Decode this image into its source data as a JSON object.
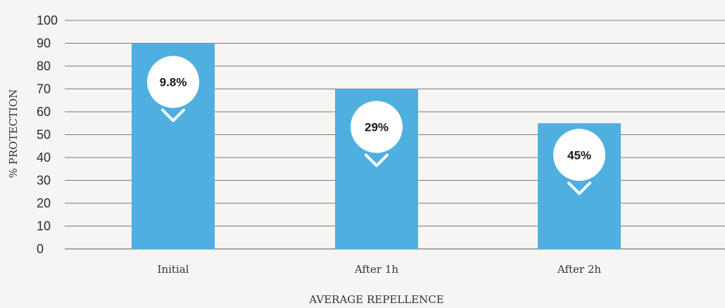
{
  "chart_data": {
    "type": "bar",
    "categories": [
      "Initial",
      "After 1h",
      "After 2h"
    ],
    "values": [
      90,
      70,
      55
    ],
    "data_labels": [
      "9.8%",
      "29%",
      "45%"
    ],
    "ylim": [
      0,
      100
    ],
    "yticks": [
      0,
      10,
      20,
      30,
      40,
      50,
      60,
      70,
      80,
      90,
      100
    ],
    "xlabel": "AVERAGE REPELLENCE",
    "ylabel": "% PROTECTION",
    "grid": true,
    "legend": "none",
    "colors": {
      "bar": "#4fb0e0",
      "grid": "#7a7a7a",
      "bubble": "#ffffff",
      "chevron": "#ffffff",
      "background": "#f6f5f4"
    }
  }
}
